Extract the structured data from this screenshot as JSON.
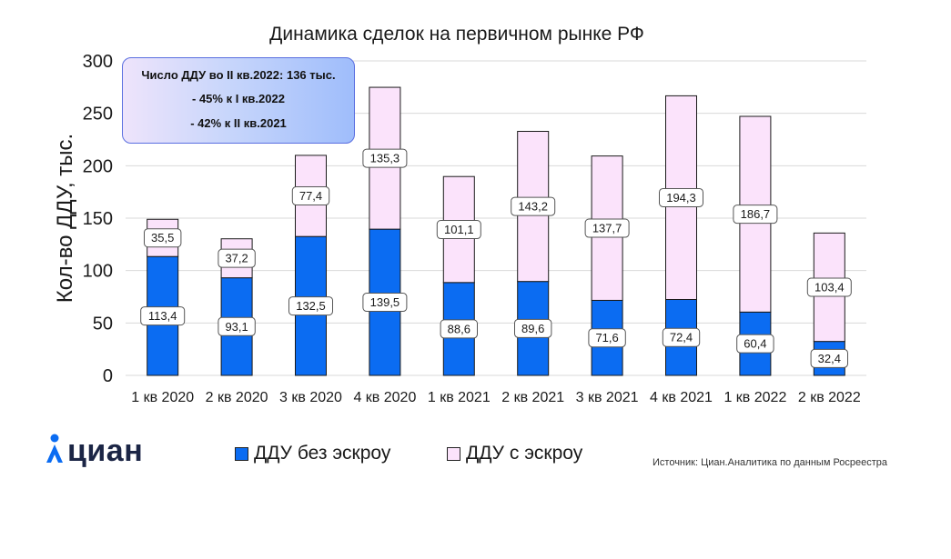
{
  "chart_data": {
    "type": "bar",
    "stacked": true,
    "title": "Динамика сделок на первичном рынке РФ",
    "xlabel": "",
    "ylabel": "Кол-во ДДУ, тыс.",
    "ylim": [
      0,
      300
    ],
    "yticks": [
      0,
      50,
      100,
      150,
      200,
      250,
      300
    ],
    "yticklabels": [
      "0",
      "50",
      "100",
      "150",
      "200",
      "250",
      "300"
    ],
    "categories": [
      "1 кв 2020",
      "2 кв 2020",
      "3 кв 2020",
      "4 кв 2020",
      "1 кв 2021",
      "2 кв 2021",
      "3 кв 2021",
      "4 кв 2021",
      "1 кв 2022",
      "2 кв 2022"
    ],
    "series": [
      {
        "name": "ДДУ без эскроу",
        "color": "#0b6cf2",
        "values": [
          113.4,
          93.1,
          132.5,
          139.5,
          88.6,
          89.6,
          71.6,
          72.4,
          60.4,
          32.4
        ],
        "labels": [
          "113,4",
          "93,1",
          "132,5",
          "139,5",
          "88,6",
          "89,6",
          "71,6",
          "72,4",
          "60,4",
          "32,4"
        ]
      },
      {
        "name": "ДДУ с эскроу",
        "color": "#fbe3fb",
        "values": [
          35.5,
          37.2,
          77.4,
          135.3,
          101.1,
          143.2,
          137.7,
          194.3,
          186.7,
          103.4
        ],
        "labels": [
          "35,5",
          "37,2",
          "77,4",
          "135,3",
          "101,1",
          "143,2",
          "137,7",
          "194,3",
          "186,7",
          "103,4"
        ]
      }
    ],
    "grid": true,
    "legend_position": "bottom",
    "annotation": {
      "line1": "Число ДДУ во II кв.2022: 136 тыс.",
      "line2": "- 45% к I кв.2022",
      "line3": "- 42% к II кв.2021"
    }
  },
  "legend": {
    "item1": "ДДУ без эскроу",
    "item2": "ДДУ с эскроу"
  },
  "logo": {
    "text": "циан",
    "icon": "cian-person-icon"
  },
  "source": "Источник: Циан.Аналитика по данным Росреестра",
  "colors": {
    "accent": "#0b6cf2",
    "escrow": "#fbe3fb",
    "logo": "#1b2545"
  }
}
